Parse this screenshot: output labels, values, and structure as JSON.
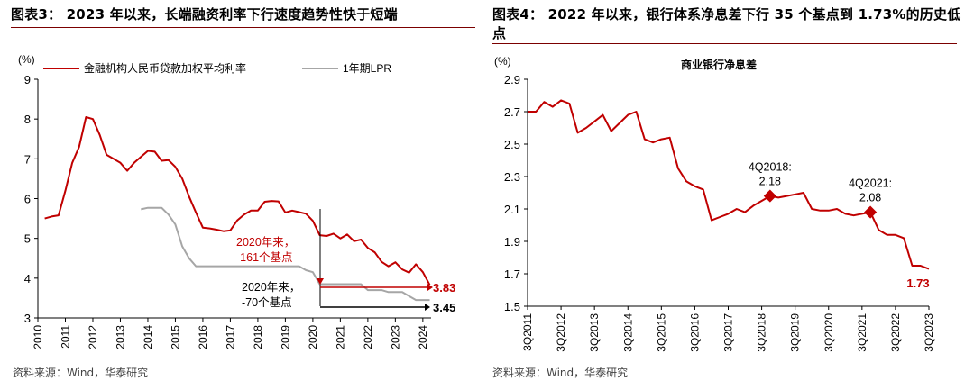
{
  "titles": {
    "left": "图表3：  2023 年以来，长端融资利率下行速度趋势性快于短端",
    "right": "图表4：  2022 年以来，银行体系净息差下行 35 个基点到 1.73%的历史低点"
  },
  "sources": {
    "left": "资料来源：Wind，华泰研究",
    "right": "资料来源：Wind，华泰研究"
  },
  "colors": {
    "red": "#c00000",
    "gray": "#a6a6a6",
    "black": "#000000"
  },
  "chart_data": [
    {
      "type": "line",
      "title": "",
      "ylabel": "(%)",
      "ylim": [
        3,
        9
      ],
      "yticks": [
        "3",
        "4",
        "5",
        "6",
        "7",
        "8",
        "9"
      ],
      "xlim": [
        2010,
        2024.3
      ],
      "xticks": [
        "2010",
        "2011",
        "2012",
        "2013",
        "2014",
        "2015",
        "2016",
        "2017",
        "2018",
        "2019",
        "2020",
        "2021",
        "2022",
        "2023",
        "2024"
      ],
      "series": [
        {
          "name": "金融机构人民币贷款加权平均利率",
          "color": "#c00000",
          "points": [
            [
              2010.25,
              5.5
            ],
            [
              2010.5,
              5.55
            ],
            [
              2010.75,
              5.58
            ],
            [
              2011.0,
              6.2
            ],
            [
              2011.25,
              6.9
            ],
            [
              2011.5,
              7.3
            ],
            [
              2011.75,
              8.05
            ],
            [
              2012.0,
              8.0
            ],
            [
              2012.25,
              7.6
            ],
            [
              2012.5,
              7.1
            ],
            [
              2012.75,
              7.0
            ],
            [
              2013.0,
              6.9
            ],
            [
              2013.25,
              6.7
            ],
            [
              2013.5,
              6.9
            ],
            [
              2013.75,
              7.05
            ],
            [
              2014.0,
              7.2
            ],
            [
              2014.25,
              7.18
            ],
            [
              2014.5,
              6.95
            ],
            [
              2014.75,
              6.97
            ],
            [
              2015.0,
              6.8
            ],
            [
              2015.25,
              6.5
            ],
            [
              2015.5,
              6.05
            ],
            [
              2015.75,
              5.65
            ],
            [
              2016.0,
              5.27
            ],
            [
              2016.25,
              5.25
            ],
            [
              2016.5,
              5.22
            ],
            [
              2016.75,
              5.18
            ],
            [
              2017.0,
              5.2
            ],
            [
              2017.25,
              5.45
            ],
            [
              2017.5,
              5.6
            ],
            [
              2017.75,
              5.7
            ],
            [
              2018.0,
              5.7
            ],
            [
              2018.25,
              5.92
            ],
            [
              2018.5,
              5.94
            ],
            [
              2018.75,
              5.93
            ],
            [
              2019.0,
              5.65
            ],
            [
              2019.25,
              5.7
            ],
            [
              2019.5,
              5.66
            ],
            [
              2019.75,
              5.62
            ],
            [
              2020.0,
              5.44
            ],
            [
              2020.25,
              5.08
            ],
            [
              2020.5,
              5.06
            ],
            [
              2020.75,
              5.12
            ],
            [
              2021.0,
              5.0
            ],
            [
              2021.25,
              5.1
            ],
            [
              2021.5,
              4.93
            ],
            [
              2021.75,
              4.97
            ],
            [
              2022.0,
              4.76
            ],
            [
              2022.25,
              4.65
            ],
            [
              2022.5,
              4.41
            ],
            [
              2022.75,
              4.3
            ],
            [
              2023.0,
              4.4
            ],
            [
              2023.25,
              4.22
            ],
            [
              2023.5,
              4.14
            ],
            [
              2023.75,
              4.35
            ],
            [
              2024.0,
              4.15
            ],
            [
              2024.25,
              3.83
            ]
          ]
        },
        {
          "name": "1年期LPR",
          "color": "#a6a6a6",
          "points": [
            [
              2013.75,
              5.73
            ],
            [
              2014.0,
              5.77
            ],
            [
              2014.5,
              5.77
            ],
            [
              2014.75,
              5.6
            ],
            [
              2015.0,
              5.35
            ],
            [
              2015.25,
              4.8
            ],
            [
              2015.5,
              4.5
            ],
            [
              2015.75,
              4.3
            ],
            [
              2019.5,
              4.3
            ],
            [
              2019.75,
              4.2
            ],
            [
              2020.0,
              4.15
            ],
            [
              2020.25,
              3.85
            ],
            [
              2021.75,
              3.85
            ],
            [
              2022.0,
              3.7
            ],
            [
              2022.5,
              3.7
            ],
            [
              2022.75,
              3.65
            ],
            [
              2023.25,
              3.65
            ],
            [
              2023.5,
              3.55
            ],
            [
              2023.75,
              3.45
            ],
            [
              2024.25,
              3.45
            ]
          ]
        }
      ],
      "end_labels": {
        "red": "3.83",
        "black": "3.45"
      },
      "annotations": [
        {
          "text_line1": "2020年来，",
          "text_line2": "-161个基点",
          "color": "#c00000"
        },
        {
          "text_line1": "2020年来，",
          "text_line2": "-70个基点",
          "color": "#000000"
        }
      ]
    },
    {
      "type": "line",
      "title": "商业银行净息差",
      "ylabel": "(%)",
      "ylim": [
        1.5,
        2.9
      ],
      "yticks": [
        "1.5",
        "1.7",
        "1.9",
        "2.1",
        "2.3",
        "2.5",
        "2.7",
        "2.9"
      ],
      "xticks": [
        "3Q2011",
        "3Q2012",
        "3Q2013",
        "3Q2014",
        "3Q2015",
        "3Q2016",
        "3Q2017",
        "3Q2018",
        "3Q2019",
        "3Q2020",
        "3Q2021",
        "3Q2022",
        "3Q2023"
      ],
      "quarters_total": 49,
      "series": [
        {
          "name": "商业银行净息差",
          "color": "#c00000",
          "values": [
            2.7,
            2.7,
            2.76,
            2.73,
            2.77,
            2.75,
            2.57,
            2.6,
            2.64,
            2.68,
            2.58,
            2.63,
            2.68,
            2.7,
            2.53,
            2.51,
            2.53,
            2.54,
            2.35,
            2.27,
            2.24,
            2.22,
            2.03,
            2.05,
            2.07,
            2.1,
            2.08,
            2.12,
            2.15,
            2.18,
            2.17,
            2.18,
            2.19,
            2.2,
            2.1,
            2.09,
            2.09,
            2.1,
            2.07,
            2.06,
            2.07,
            2.08,
            1.97,
            1.94,
            1.94,
            1.92,
            1.75,
            1.75,
            1.73
          ]
        }
      ],
      "markers": [
        {
          "index": 29,
          "label_line1": "4Q2018:",
          "label_line2": "2.18"
        },
        {
          "index": 41,
          "label_line1": "4Q2021:",
          "label_line2": "2.08"
        }
      ],
      "end_label": "1.73"
    }
  ]
}
